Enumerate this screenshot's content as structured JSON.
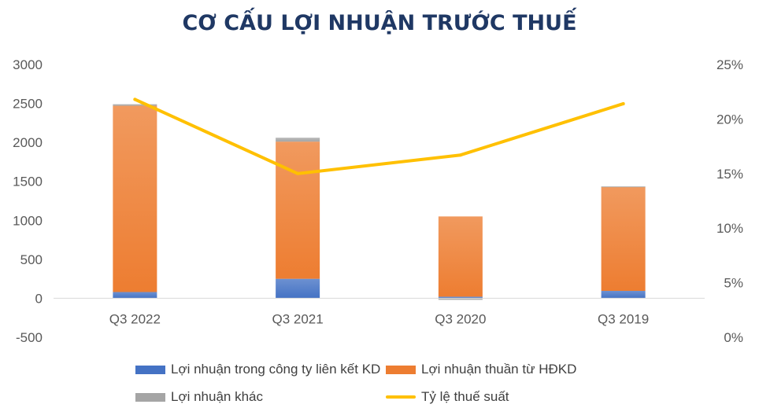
{
  "chart_data": {
    "type": "bar",
    "stacked": true,
    "title": "CƠ CẤU LỢI NHUẬN TRƯỚC THUẾ",
    "categories": [
      "Q3 2022",
      "Q3 2021",
      "Q3 2020",
      "Q3 2019"
    ],
    "y_left": {
      "ticks": [
        "3000",
        "2500",
        "2000",
        "1500",
        "1000",
        "500",
        "0",
        "-500"
      ],
      "ylim": [
        -500,
        3000
      ]
    },
    "y_right": {
      "ticks": [
        "25%",
        "20%",
        "15%",
        "10%",
        "5%",
        "0%"
      ],
      "ylim": [
        0,
        25
      ]
    },
    "series": [
      {
        "name": "Lợi nhuận trong công ty liên kết KD",
        "type": "bar",
        "color": "#4472c4",
        "values": [
          80,
          250,
          20,
          95
        ]
      },
      {
        "name": "Lợi nhuận thuần từ HĐKD",
        "type": "bar",
        "color": "#ed7d31",
        "values": [
          2390,
          1760,
          1030,
          1335
        ]
      },
      {
        "name": "Lợi nhuận khác",
        "type": "bar",
        "color": "#a5a5a5",
        "values": [
          20,
          50,
          -20,
          5
        ]
      },
      {
        "name": "Tỷ lệ thuế suất",
        "type": "line",
        "axis": "right",
        "color": "#ffc000",
        "values": [
          21.8,
          15.0,
          16.7,
          21.4
        ]
      }
    ],
    "grid": false,
    "legend_position": "bottom"
  }
}
